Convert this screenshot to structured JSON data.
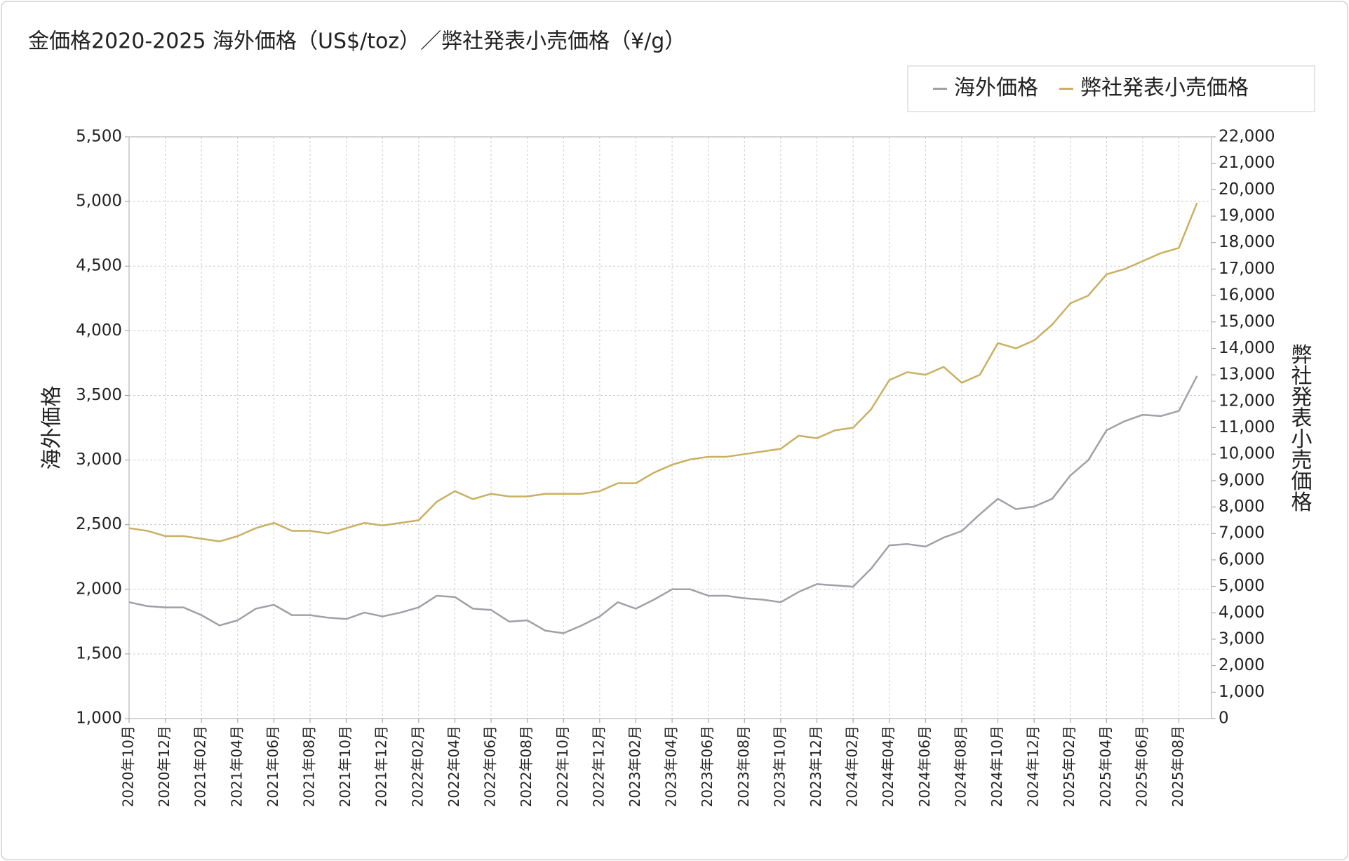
{
  "chart_data": {
    "type": "line",
    "title": "金価格2020-2025 海外価格（US$/toz）／弊社発表小売価格（¥/g）",
    "y_label": "海外価格",
    "y2_label": "弊社発表小売価格",
    "categories": [
      "2020年10月",
      null,
      "2020年12月",
      null,
      "2021年02月",
      null,
      "2021年04月",
      null,
      "2021年06月",
      null,
      "2021年08月",
      null,
      "2021年10月",
      null,
      "2021年12月",
      null,
      "2022年02月",
      null,
      "2022年04月",
      null,
      "2022年06月",
      null,
      "2022年08月",
      null,
      "2022年10月",
      null,
      "2022年12月",
      null,
      "2023年02月",
      null,
      "2023年04月",
      null,
      "2023年06月",
      null,
      "2023年08月",
      null,
      "2023年10月",
      null,
      "2023年12月",
      null,
      "2024年02月",
      null,
      "2024年04月",
      null,
      "2024年06月",
      null,
      "2024年08月",
      null,
      "2024年10月",
      null,
      "2024年12月",
      null,
      "2025年02月",
      null,
      "2025年04月",
      null,
      "2025年06月",
      null,
      "2025年08月",
      null
    ],
    "series": [
      {
        "name": "海外価格",
        "color": "#a0a0a8",
        "axis": "y",
        "values": [
          1900,
          1870,
          1860,
          1860,
          1800,
          1720,
          1760,
          1850,
          1880,
          1800,
          1800,
          1780,
          1770,
          1820,
          1790,
          1820,
          1860,
          1950,
          1940,
          1850,
          1840,
          1750,
          1760,
          1680,
          1660,
          1720,
          1790,
          1900,
          1850,
          1920,
          2000,
          2000,
          1950,
          1950,
          1930,
          1920,
          1900,
          1980,
          2040,
          2030,
          2020,
          2160,
          2340,
          2350,
          2330,
          2400,
          2450,
          2580,
          2700,
          2620,
          2640,
          2700,
          2880,
          3000,
          3230,
          3300,
          3350,
          3340,
          3380,
          3650
        ]
      },
      {
        "name": "弊社発表小売価格",
        "color": "#c9b062",
        "axis": "y2",
        "values": [
          7200,
          7100,
          6900,
          6900,
          6800,
          6700,
          6900,
          7200,
          7400,
          7100,
          7100,
          7000,
          7200,
          7400,
          7300,
          7400,
          7500,
          8200,
          8600,
          8300,
          8500,
          8400,
          8400,
          8500,
          8500,
          8500,
          8600,
          8900,
          8900,
          9300,
          9600,
          9800,
          9900,
          9900,
          10000,
          10100,
          10200,
          10700,
          10600,
          10900,
          11000,
          11700,
          12800,
          13100,
          13000,
          13300,
          12700,
          13000,
          14200,
          14000,
          14300,
          14900,
          15700,
          16000,
          16800,
          17000,
          17300,
          17600,
          17800,
          19500
        ]
      }
    ],
    "ylim": [
      1000,
      5500
    ],
    "yticks": [
      {
        "value": 1000,
        "label": "1,000"
      },
      {
        "value": 1500,
        "label": "1,500"
      },
      {
        "value": 2000,
        "label": "2,000"
      },
      {
        "value": 2500,
        "label": "2,500"
      },
      {
        "value": 3000,
        "label": "3,000"
      },
      {
        "value": 3500,
        "label": "3,500"
      },
      {
        "value": 4000,
        "label": "4,000"
      },
      {
        "value": 4500,
        "label": "4,500"
      },
      {
        "value": 5000,
        "label": "5,000"
      },
      {
        "value": 5500,
        "label": "5,500"
      }
    ],
    "y2lim": [
      0,
      22000
    ],
    "y2ticks": [
      0,
      {
        "value": 1000,
        "label": "1,000"
      },
      {
        "value": 2000,
        "label": "2,000"
      },
      {
        "value": 3000,
        "label": "3,000"
      },
      {
        "value": 4000,
        "label": "4,000"
      },
      {
        "value": 5000,
        "label": "5,000"
      },
      {
        "value": 6000,
        "label": "6,000"
      },
      {
        "value": 7000,
        "label": "7,000"
      },
      {
        "value": 8000,
        "label": "8,000"
      },
      {
        "value": 9000,
        "label": "9,000"
      },
      {
        "value": 10000,
        "label": "10,000"
      },
      {
        "value": 11000,
        "label": "11,000"
      },
      {
        "value": 12000,
        "label": "12,000"
      },
      {
        "value": 13000,
        "label": "13,000"
      },
      {
        "value": 14000,
        "label": "14,000"
      },
      {
        "value": 15000,
        "label": "15,000"
      },
      {
        "value": 16000,
        "label": "16,000"
      },
      {
        "value": 17000,
        "label": "17,000"
      },
      {
        "value": 18000,
        "label": "18,000"
      },
      {
        "value": 19000,
        "label": "19,000"
      },
      {
        "value": 20000,
        "label": "20,000"
      },
      {
        "value": 21000,
        "label": "21,000"
      },
      {
        "value": 22000,
        "label": "22,000"
      }
    ],
    "grid": true,
    "legend": "top-right"
  }
}
